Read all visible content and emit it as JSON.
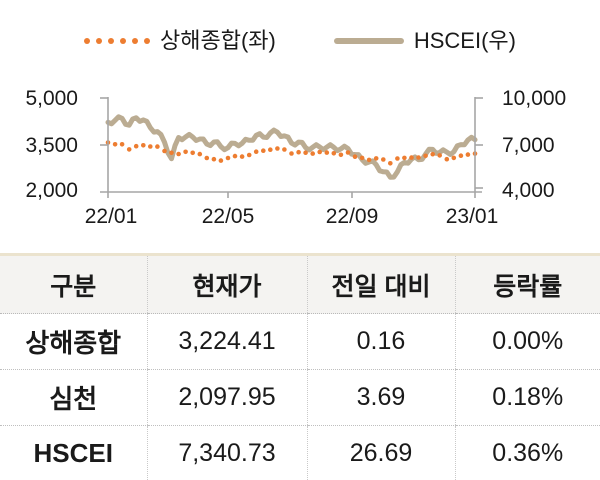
{
  "legend": {
    "series1_label": "상해종합(좌)",
    "series2_label": "HSCEI(우)"
  },
  "colors": {
    "orange": "#ED7D31",
    "tan": "#BBAC92",
    "axis": "#A6A6A6",
    "text": "#1A1A1A",
    "table_top_border": "#EBE3CE",
    "header_bg": "#F4F3F1"
  },
  "chart_data": {
    "type": "line",
    "title": "",
    "x_tick_labels": [
      "22/01",
      "22/05",
      "22/09",
      "23/01"
    ],
    "left_axis": {
      "tick_labels": [
        "5,000",
        "3,500",
        "2,000"
      ],
      "min": 2000,
      "max": 5000
    },
    "right_axis": {
      "tick_labels": [
        "10,000",
        "7,000",
        "4,000"
      ],
      "min": 4000,
      "max": 10000
    },
    "grid": false,
    "legend_position": "top",
    "series": [
      {
        "name": "상해종합(좌)",
        "axis": "left",
        "style": "dotted",
        "color": "#ED7D31",
        "values": [
          3579,
          3521,
          3523,
          3361,
          3463,
          3491,
          3451,
          3448,
          3310,
          3251,
          3212,
          3283,
          3252,
          3211,
          3086,
          3047,
          3002,
          3084,
          3147,
          3130,
          3182,
          3285,
          3317,
          3350,
          3388,
          3356,
          3228,
          3269,
          3253,
          3227,
          3277,
          3258,
          3236,
          3186,
          3262,
          3126,
          3088,
          3024,
          3072,
          3038,
          2915,
          3070,
          3087,
          3097,
          3102,
          3156,
          3207,
          3167,
          3046,
          3089,
          3158,
          3195,
          3224
        ]
      },
      {
        "name": "HSCEI(우)",
        "axis": "right",
        "style": "solid",
        "color": "#BBAC92",
        "values": [
          8451,
          8576,
          8700,
          8262,
          8733,
          8601,
          8107,
          7855,
          7178,
          6123,
          7476,
          7519,
          7513,
          7385,
          7057,
          7190,
          6899,
          6826,
          7102,
          7111,
          7297,
          7621,
          7504,
          7768,
          7820,
          7580,
          7120,
          7184,
          6832,
          6853,
          6870,
          6863,
          6856,
          6753,
          6769,
          6392,
          6066,
          5914,
          5741,
          5291,
          4939,
          5289,
          5892,
          6101,
          6060,
          6421,
          6721,
          6527,
          6544,
          6569,
          7026,
          7319,
          7341
        ]
      }
    ]
  },
  "table": {
    "headers": [
      "구분",
      "현재가",
      "전일 대비",
      "등락률"
    ],
    "rows": [
      {
        "name": "상해종합",
        "price": "3,224.41",
        "change": "0.16",
        "pct": "0.00%"
      },
      {
        "name": "심천",
        "price": "2,097.95",
        "change": "3.69",
        "pct": "0.18%"
      },
      {
        "name": "HSCEI",
        "price": "7,340.73",
        "change": "26.69",
        "pct": "0.36%"
      }
    ]
  }
}
